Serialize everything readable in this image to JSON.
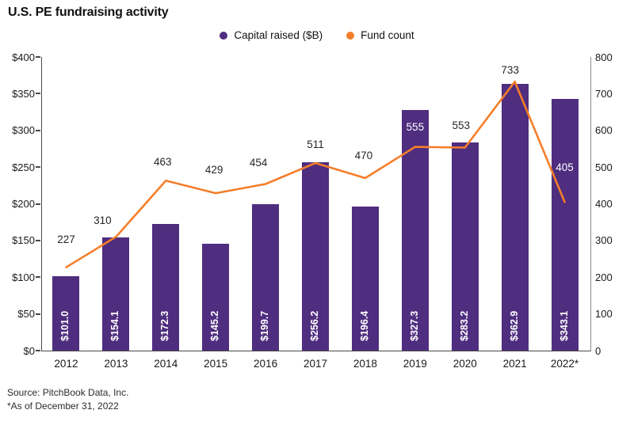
{
  "title": "U.S. PE fundraising activity",
  "legend": [
    {
      "label": "Capital raised ($B)",
      "color": "#4F2D7F",
      "icon": "circle"
    },
    {
      "label": "Fund count",
      "color": "#F57E2A",
      "icon": "circle"
    }
  ],
  "source_line1": "Source: PitchBook Data, Inc.",
  "source_line2": "*As of December 31, 2022",
  "chart_data": {
    "type": "bar",
    "subtype": "bar+line dual-axis",
    "title": "U.S. PE fundraising activity",
    "categories": [
      "2012",
      "2013",
      "2014",
      "2015",
      "2016",
      "2017",
      "2018",
      "2019",
      "2020",
      "2021",
      "2022*"
    ],
    "series": [
      {
        "name": "Capital raised ($B)",
        "type": "bar",
        "axis": "left",
        "color": "#4F2D7F",
        "values": [
          101.0,
          154.1,
          172.3,
          145.2,
          199.7,
          256.2,
          196.4,
          327.3,
          283.2,
          362.9,
          343.1
        ],
        "value_labels": [
          "$101.0",
          "$154.1",
          "$172.3",
          "$145.2",
          "$199.7",
          "$256.2",
          "$196.4",
          "$327.3",
          "$283.2",
          "$362.9",
          "$343.1"
        ]
      },
      {
        "name": "Fund count",
        "type": "line",
        "axis": "right",
        "color": "#F57E2A",
        "values": [
          227,
          310,
          463,
          429,
          454,
          511,
          470,
          555,
          553,
          733,
          405
        ],
        "value_labels": [
          "227",
          "310",
          "463",
          "429",
          "454",
          "511",
          "470",
          "555",
          "553",
          "733",
          "405"
        ],
        "label_dx": [
          0,
          -17,
          -4,
          -2,
          -9,
          0,
          -2,
          0,
          -5,
          -6,
          0
        ],
        "label_dy": [
          -35,
          -20,
          -23,
          -29,
          -26,
          -23,
          -28,
          -25,
          -28,
          -14,
          -43
        ],
        "label_style": [
          "dark",
          "dark",
          "dark",
          "dark",
          "dark",
          "dark",
          "dark",
          "light",
          "dark",
          "dark",
          "light"
        ]
      }
    ],
    "left_axis": {
      "min": 0,
      "max": 400,
      "step": 50,
      "tick_labels": [
        "$0",
        "$50",
        "$100",
        "$150",
        "$200",
        "$250",
        "$300",
        "$350",
        "$400"
      ]
    },
    "right_axis": {
      "min": 0,
      "max": 800,
      "step": 100,
      "tick_labels": [
        "0",
        "100",
        "200",
        "300",
        "400",
        "500",
        "600",
        "700",
        "800"
      ]
    },
    "grid": false,
    "legend_position": "top-center",
    "label_colors": {
      "dark": "#262626",
      "light": "#ffffff"
    }
  }
}
